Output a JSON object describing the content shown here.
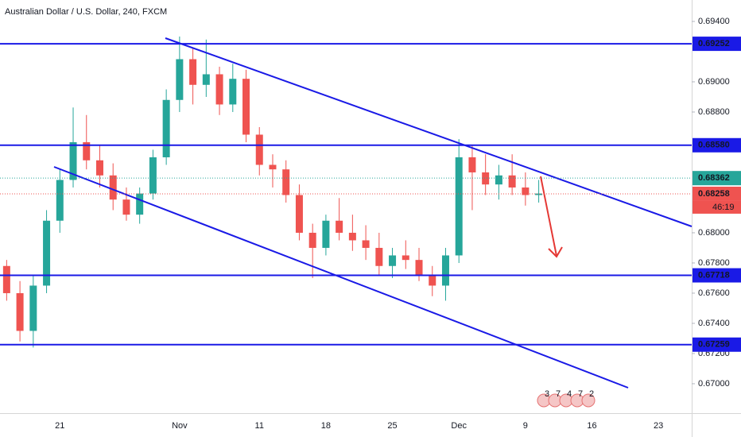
{
  "chart_data": {
    "type": "candlestick",
    "title": "Australian Dollar / U.S. Dollar, 240, FXCM",
    "categories": [
      null,
      null,
      null,
      null,
      "21",
      null,
      null,
      null,
      null,
      null,
      null,
      null,
      null,
      "Nov",
      null,
      null,
      null,
      null,
      null,
      "11",
      null,
      null,
      null,
      null,
      "18",
      null,
      null,
      null,
      null,
      "25",
      null,
      null,
      null,
      null,
      "Dec",
      null,
      null,
      null,
      null,
      "9",
      null,
      null,
      null,
      null,
      "16",
      null,
      null,
      null,
      null,
      "23",
      null,
      null
    ],
    "open": [
      0.6778,
      0.676,
      0.6735,
      0.6765,
      0.6808,
      0.6835,
      0.686,
      0.6848,
      0.6838,
      0.6822,
      0.6812,
      0.6826,
      0.685,
      0.6888,
      0.6915,
      0.6898,
      0.6905,
      0.6885,
      0.6902,
      0.6865,
      0.6845,
      0.6842,
      0.6825,
      0.68,
      0.679,
      0.6808,
      0.68,
      0.6795,
      0.679,
      0.6778,
      0.6785,
      0.6782,
      0.6772,
      0.6765,
      0.6785,
      0.685,
      0.684,
      0.6832,
      0.6838,
      0.683,
      0.6825,
      null,
      null,
      null,
      null,
      null,
      null,
      null,
      null,
      null,
      null,
      null
    ],
    "high": [
      0.6782,
      0.6768,
      0.6772,
      0.6815,
      0.6842,
      0.6883,
      0.6878,
      0.6858,
      0.6846,
      0.683,
      0.683,
      0.6855,
      0.6895,
      0.693,
      0.6922,
      0.6928,
      0.691,
      0.6912,
      0.6908,
      0.687,
      0.6852,
      0.6848,
      0.6832,
      0.6806,
      0.6812,
      0.6823,
      0.6812,
      0.6805,
      0.68,
      0.679,
      0.6795,
      0.679,
      0.6778,
      0.679,
      0.6862,
      0.6858,
      0.6852,
      0.6845,
      0.6852,
      0.684,
      0.6835,
      null,
      null,
      null,
      null,
      null,
      null,
      null,
      null,
      null,
      null,
      null
    ],
    "low": [
      0.6755,
      0.6728,
      0.6724,
      0.676,
      0.68,
      0.683,
      0.6842,
      0.683,
      0.6815,
      0.6808,
      0.6806,
      0.6822,
      0.6845,
      0.688,
      0.6885,
      0.689,
      0.6878,
      0.688,
      0.686,
      0.6838,
      0.683,
      0.682,
      0.6795,
      0.677,
      0.6785,
      0.6795,
      0.6788,
      0.6782,
      0.6772,
      0.677,
      0.6776,
      0.6768,
      0.6758,
      0.6755,
      0.678,
      0.6815,
      0.6825,
      0.6822,
      0.6825,
      0.6818,
      0.682,
      null,
      null,
      null,
      null,
      null,
      null,
      null,
      null,
      null,
      null,
      null
    ],
    "close": [
      0.676,
      0.6735,
      0.6765,
      0.6808,
      0.6835,
      0.686,
      0.6848,
      0.6838,
      0.6822,
      0.6812,
      0.6826,
      0.685,
      0.6888,
      0.6915,
      0.6898,
      0.6905,
      0.6885,
      0.6902,
      0.6865,
      0.6845,
      0.6842,
      0.6825,
      0.68,
      0.679,
      0.6808,
      0.68,
      0.6795,
      0.679,
      0.6778,
      0.6785,
      0.6782,
      0.6772,
      0.6765,
      0.6785,
      0.685,
      0.684,
      0.6832,
      0.6838,
      0.683,
      0.6825,
      0.6826,
      null,
      null,
      null,
      null,
      null,
      null,
      null,
      null,
      null,
      null,
      null
    ],
    "up_color": "#26a69a",
    "down_color": "#ef5350",
    "ylim": [
      0.66805,
      0.69542
    ],
    "yticks": [
      {
        "value": 0.694,
        "label": "0.69400"
      },
      {
        "value": 0.69,
        "label": "0.69000"
      },
      {
        "value": 0.688,
        "label": "0.68800"
      },
      {
        "value": 0.68,
        "label": "0.68000"
      },
      {
        "value": 0.678,
        "label": "0.67800"
      },
      {
        "value": 0.676,
        "label": "0.67600"
      },
      {
        "value": 0.674,
        "label": "0.67400"
      },
      {
        "value": 0.672,
        "label": "0.67200"
      },
      {
        "value": 0.67,
        "label": "0.67000"
      }
    ],
    "levels": [
      {
        "value": 0.69252,
        "label": "0.69252"
      },
      {
        "value": 0.6858,
        "label": "0.68580"
      },
      {
        "value": 0.67718,
        "label": "0.67718"
      },
      {
        "value": 0.67259,
        "label": "0.67259"
      }
    ],
    "level_color": "#1a1ae6",
    "markers": [
      {
        "value": 0.68362,
        "label": "0.68362",
        "color": "#26a69a"
      },
      {
        "value": 0.68258,
        "label": "0.68258",
        "color": "#ef5350",
        "countdown": "46:19"
      }
    ],
    "events": [
      "3",
      "7",
      "4",
      "7",
      "2"
    ]
  }
}
